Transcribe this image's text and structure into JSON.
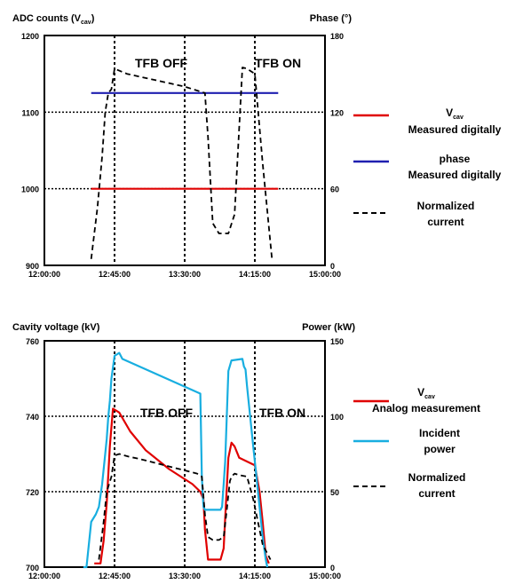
{
  "chart_data": [
    {
      "type": "line",
      "ylabel_left": "ADC counts (V",
      "ylabel_left_sub": "cav",
      "ylabel_left_close": ")",
      "ylabel_right": "Phase (°)",
      "x_ticks": [
        "12:00:00",
        "12:45:00",
        "13:30:00",
        "14:15:00",
        "15:00:00"
      ],
      "x_range": [
        0,
        180
      ],
      "y_left_range": [
        900,
        1200
      ],
      "y_left_ticks": [
        "1200",
        "1100",
        "1000",
        "900"
      ],
      "y_right_range": [
        0,
        180
      ],
      "y_right_ticks": [
        "180",
        "120",
        "60",
        "0"
      ],
      "annotations": [
        "TFB OFF",
        "TFB ON"
      ],
      "grid": "dotted",
      "legend_placement": "right",
      "series": [
        {
          "name": "V_cav Measured digitally",
          "legend": {
            "l1_main": "V",
            "l1_sub": "cav",
            "l2": "Measured digitally"
          },
          "color": "#e00000",
          "style": "solid",
          "axis": "left",
          "x": [
            30,
            150
          ],
          "y": [
            1000,
            1000
          ]
        },
        {
          "name": "phase Measured digitally",
          "legend": {
            "l1_main": "phase",
            "l1_sub": "",
            "l2": "Measured digitally"
          },
          "color": "#1f1fb0",
          "style": "solid",
          "axis": "left",
          "x": [
            30,
            150
          ],
          "y": [
            1125,
            1125
          ]
        },
        {
          "name": "Normalized current",
          "legend": {
            "l1_main": "Normalized",
            "l1_sub": "",
            "l2": "current"
          },
          "color": "#000000",
          "style": "dashed",
          "axis": "right",
          "x": [
            30,
            34,
            37,
            39,
            41,
            43,
            45,
            49,
            53,
            90,
            103,
            105,
            108,
            112,
            116,
            118,
            122,
            127,
            130,
            135,
            140,
            146
          ],
          "y": [
            5,
            45,
            85,
            120,
            135,
            138,
            154,
            152,
            150,
            140,
            135,
            100,
            33,
            25,
            25,
            25,
            40,
            155,
            154,
            150,
            80,
            5
          ]
        }
      ]
    },
    {
      "type": "line",
      "ylabel_left": "Cavity voltage (kV)",
      "ylabel_right": "Power (kW)",
      "x_ticks": [
        "12:00:00",
        "12:45:00",
        "13:30:00",
        "14:15:00",
        "15:00:00"
      ],
      "x_range": [
        0,
        180
      ],
      "y_left_range": [
        700,
        760
      ],
      "y_left_ticks": [
        "760",
        "740",
        "720",
        "700"
      ],
      "y_right_range": [
        0,
        150
      ],
      "y_right_ticks": [
        "150",
        "100",
        "50",
        "0"
      ],
      "annotations": [
        "TFB OFF",
        "TFB ON"
      ],
      "grid": "dotted",
      "legend_placement": "right",
      "series": [
        {
          "name": "V_cav Analog measurement",
          "legend": {
            "l1_main": "V",
            "l1_sub": "cav",
            "l2": "Analog measurement"
          },
          "color": "#e00000",
          "style": "solid",
          "axis": "left",
          "x": [
            32,
            36,
            38,
            40,
            42,
            44,
            48,
            55,
            65,
            80,
            95,
            100,
            102,
            103,
            105,
            110,
            113,
            115,
            116,
            118,
            120,
            122,
            125,
            130,
            135,
            138,
            140,
            142,
            144
          ],
          "y": [
            701,
            701,
            707,
            717,
            732,
            742,
            741,
            736,
            731,
            726,
            722,
            720,
            718,
            710,
            702,
            702,
            702,
            705,
            713,
            729,
            733,
            732,
            729,
            728,
            727,
            720,
            712,
            703,
            701
          ]
        },
        {
          "name": "Incident power",
          "legend": {
            "l1_main": "Incident",
            "l1_sub": "",
            "l2": "power"
          },
          "color": "#18aee0",
          "style": "solid",
          "axis": "right",
          "x": [
            25,
            27,
            30,
            33,
            35,
            37,
            39,
            40,
            41,
            42,
            43,
            45,
            48,
            50,
            100,
            101,
            102,
            103,
            106,
            110,
            113,
            114,
            115,
            116,
            118,
            120,
            127,
            128,
            129,
            130,
            132,
            134,
            136,
            138,
            140,
            142,
            143
          ],
          "y": [
            0,
            0,
            30,
            35,
            40,
            55,
            75,
            85,
            100,
            110,
            125,
            140,
            142,
            138,
            115,
            60,
            40,
            38,
            38,
            38,
            38,
            40,
            55,
            70,
            130,
            137,
            138,
            133,
            131,
            120,
            100,
            80,
            60,
            40,
            20,
            5,
            0
          ]
        },
        {
          "name": "Normalized current",
          "legend": {
            "l1_main": "Normalized",
            "l1_sub": "",
            "l2": "current"
          },
          "color": "#000000",
          "style": "dashed",
          "axis": "right",
          "x": [
            35,
            38,
            40,
            43,
            45,
            48,
            55,
            60,
            98,
            101,
            103,
            105,
            108,
            112,
            115,
            117,
            119,
            120,
            122,
            125,
            130,
            134,
            140,
            145
          ],
          "y": [
            5,
            30,
            50,
            60,
            74,
            75,
            73,
            72,
            62,
            60,
            35,
            20,
            18,
            18,
            20,
            38,
            57,
            60,
            62,
            61,
            60,
            45,
            15,
            5
          ]
        }
      ]
    }
  ]
}
